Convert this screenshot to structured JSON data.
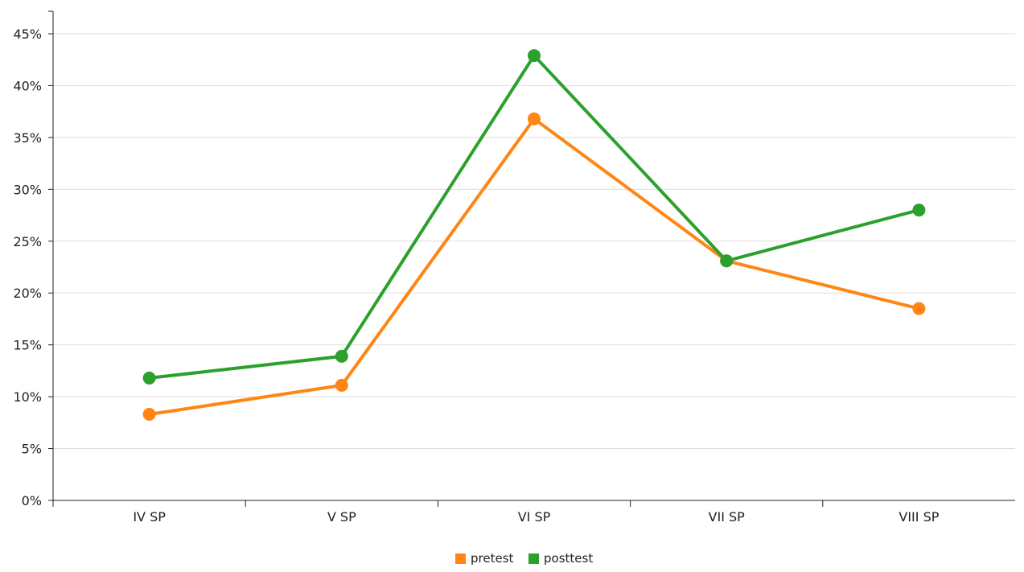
{
  "chart_data": {
    "type": "line",
    "title": "",
    "xlabel": "",
    "ylabel": "",
    "categories": [
      "IV SP",
      "V SP",
      "VI SP",
      "VII SP",
      "VIII SP"
    ],
    "series": [
      {
        "name": "pretest",
        "color": "#ff8514",
        "values": [
          8.3,
          11.1,
          36.8,
          23.1,
          18.5
        ]
      },
      {
        "name": "posttest",
        "color": "#2ca02c",
        "values": [
          11.8,
          13.9,
          42.9,
          23.1,
          28.0
        ]
      }
    ],
    "ylim": [
      0,
      45
    ],
    "yticks": [
      0,
      5,
      10,
      15,
      20,
      25,
      30,
      35,
      40,
      45
    ],
    "ytick_labels": [
      "0%",
      "5%",
      "10%",
      "15%",
      "20%",
      "25%",
      "30%",
      "35%",
      "40%",
      "45%"
    ],
    "grid": true,
    "legend_position": "bottom-center"
  }
}
